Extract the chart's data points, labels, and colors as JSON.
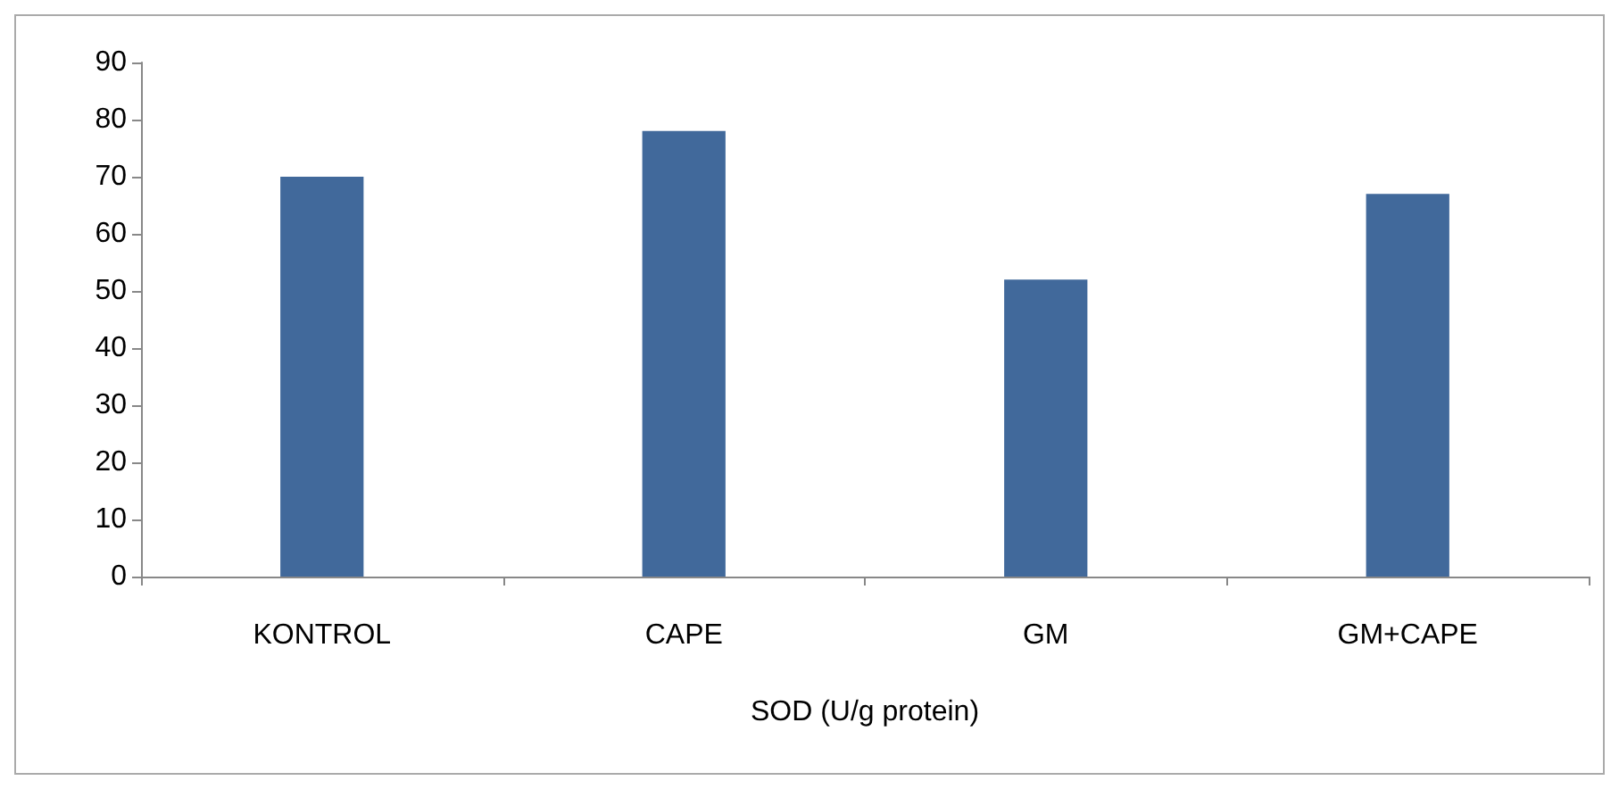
{
  "chart_data": {
    "type": "bar",
    "xlabel": "SOD (U/g protein)",
    "categories": [
      "KONTROL",
      "CAPE",
      "GM",
      "GM+CAPE"
    ],
    "values": [
      70,
      78,
      52,
      67
    ],
    "color": "#41699b",
    "ylim": [
      0,
      90
    ],
    "yticks": [
      0,
      10,
      20,
      30,
      40,
      50,
      60,
      70,
      80,
      90
    ],
    "grid": false
  }
}
